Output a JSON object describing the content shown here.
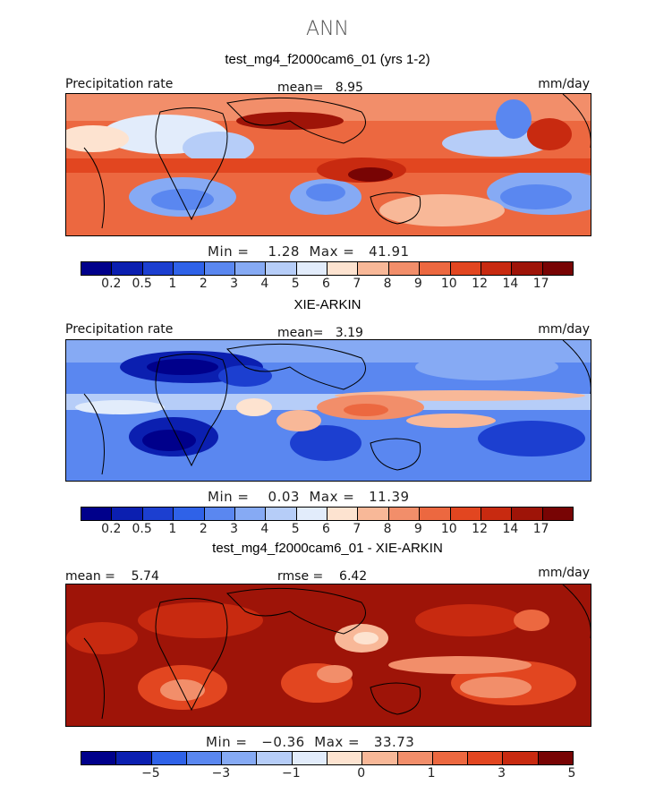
{
  "season": "ANN",
  "panels": [
    {
      "title": "test_mg4_f2000cam6_01 (yrs 1-2)",
      "left_label": "Precipitation rate",
      "mean_text": "mean=   8.95",
      "units": "mm/day",
      "minmax": "Min =    1.28  Max =   41.91",
      "levels": [
        "0.2",
        "0.5",
        "1",
        "2",
        "3",
        "4",
        "5",
        "6",
        "7",
        "8",
        "9",
        "10",
        "12",
        "14",
        "17"
      ]
    },
    {
      "title": "XIE-ARKIN",
      "left_label": "Precipitation rate",
      "mean_text": "mean=   3.19",
      "units": "mm/day",
      "minmax": "Min =    0.03  Max =   11.39",
      "levels": [
        "0.2",
        "0.5",
        "1",
        "2",
        "3",
        "4",
        "5",
        "6",
        "7",
        "8",
        "9",
        "10",
        "12",
        "14",
        "17"
      ]
    },
    {
      "title": "test_mg4_f2000cam6_01 - XIE-ARKIN",
      "left_label": "mean =    5.74",
      "mean_text": "rmse =    6.42",
      "units": "mm/day",
      "minmax": "Min =   −0.36  Max =   33.73",
      "levels": [
        "−5",
        "−3",
        "−1",
        "0",
        "1",
        "3",
        "5"
      ]
    }
  ],
  "colors": {
    "colorbar": [
      "#00008b",
      "#0b1fb0",
      "#1c3fd0",
      "#2f62e8",
      "#5a87f0",
      "#86aaf4",
      "#b6cdf8",
      "#e2ecfb",
      "#fde3d0",
      "#f8b898",
      "#f28e6a",
      "#ec6840",
      "#e24620",
      "#c82a10",
      "#9e1408",
      "#780404"
    ],
    "land_outline": "#000000"
  }
}
